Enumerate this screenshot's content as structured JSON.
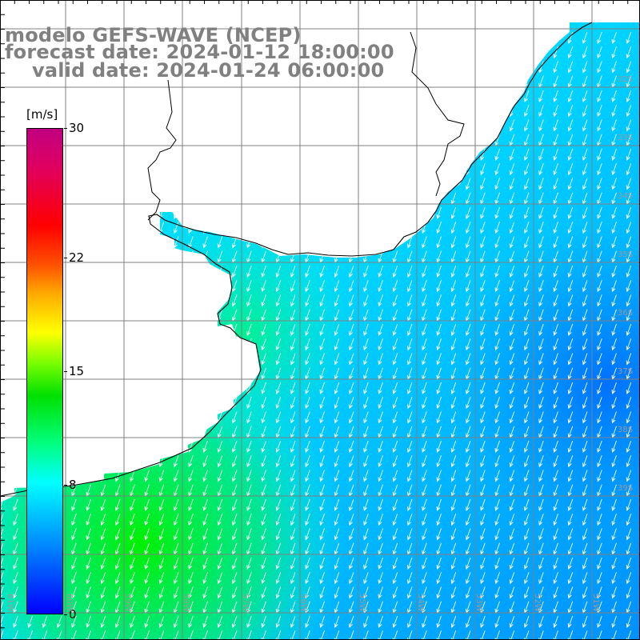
{
  "header": {
    "line1": "modelo GEFS-WAVE (NCEP)",
    "line2": "forecast date: 2024-01-12 18:00:00",
    "line3": "valid date: 2024-01-24 06:00:00"
  },
  "colorbar": {
    "units": "[m/s]",
    "ticks": [
      {
        "value": 0,
        "label": "0"
      },
      {
        "value": 8,
        "label": "8"
      },
      {
        "value": 15,
        "label": "15"
      },
      {
        "value": 22,
        "label": "22"
      },
      {
        "value": 30,
        "label": "30"
      }
    ],
    "range": [
      0,
      30
    ]
  },
  "map": {
    "lat_labels": [
      "32S",
      "33S",
      "34S",
      "35S",
      "36S",
      "37S",
      "38S",
      "39S"
    ],
    "lon_labels": [
      "61W",
      "60W",
      "59W",
      "58W",
      "57W",
      "56W",
      "55W",
      "54W",
      "53W",
      "52W",
      "51W"
    ],
    "wind_direction": "southwestward",
    "colors": {
      "land": "#ffffff",
      "grid": "#808080",
      "coast": "#000000",
      "arrows": "#ffffff"
    }
  }
}
